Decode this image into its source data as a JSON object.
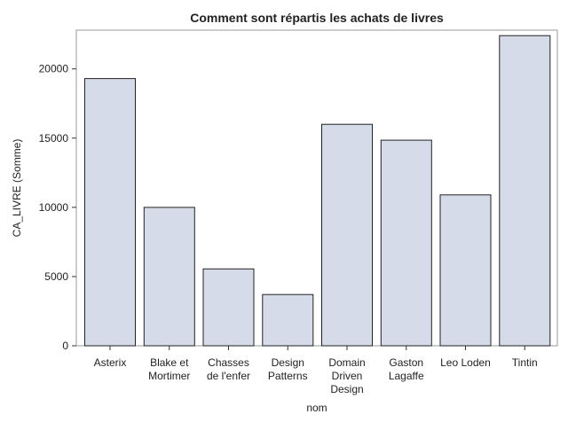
{
  "chart_data": {
    "type": "bar",
    "title": "Comment sont répartis les achats de livres",
    "xlabel": "nom",
    "ylabel": "CA_LIVRE (Somme)",
    "categories": [
      "Asterix",
      "Blake et Mortimer",
      "Chasses de l'enfer",
      "Design Patterns",
      "Domain Driven Design",
      "Gaston Lagaffe",
      "Leo Loden",
      "Tintin"
    ],
    "category_lines": [
      [
        "Asterix"
      ],
      [
        "Blake et",
        "Mortimer"
      ],
      [
        "Chasses",
        "de l'enfer"
      ],
      [
        "Design",
        "Patterns"
      ],
      [
        "Domain",
        "Driven",
        "Design"
      ],
      [
        "Gaston",
        "Lagaffe"
      ],
      [
        "Leo Loden"
      ],
      [
        "Tintin"
      ]
    ],
    "values": [
      19300,
      10000,
      5550,
      3700,
      16000,
      14850,
      10900,
      22400
    ],
    "ylim": [
      0,
      22800
    ],
    "yticks": [
      0,
      5000,
      10000,
      15000,
      20000
    ],
    "grid": false,
    "legend": "none",
    "bar_fill": "#d5dbe8",
    "bar_stroke": "#222222"
  }
}
